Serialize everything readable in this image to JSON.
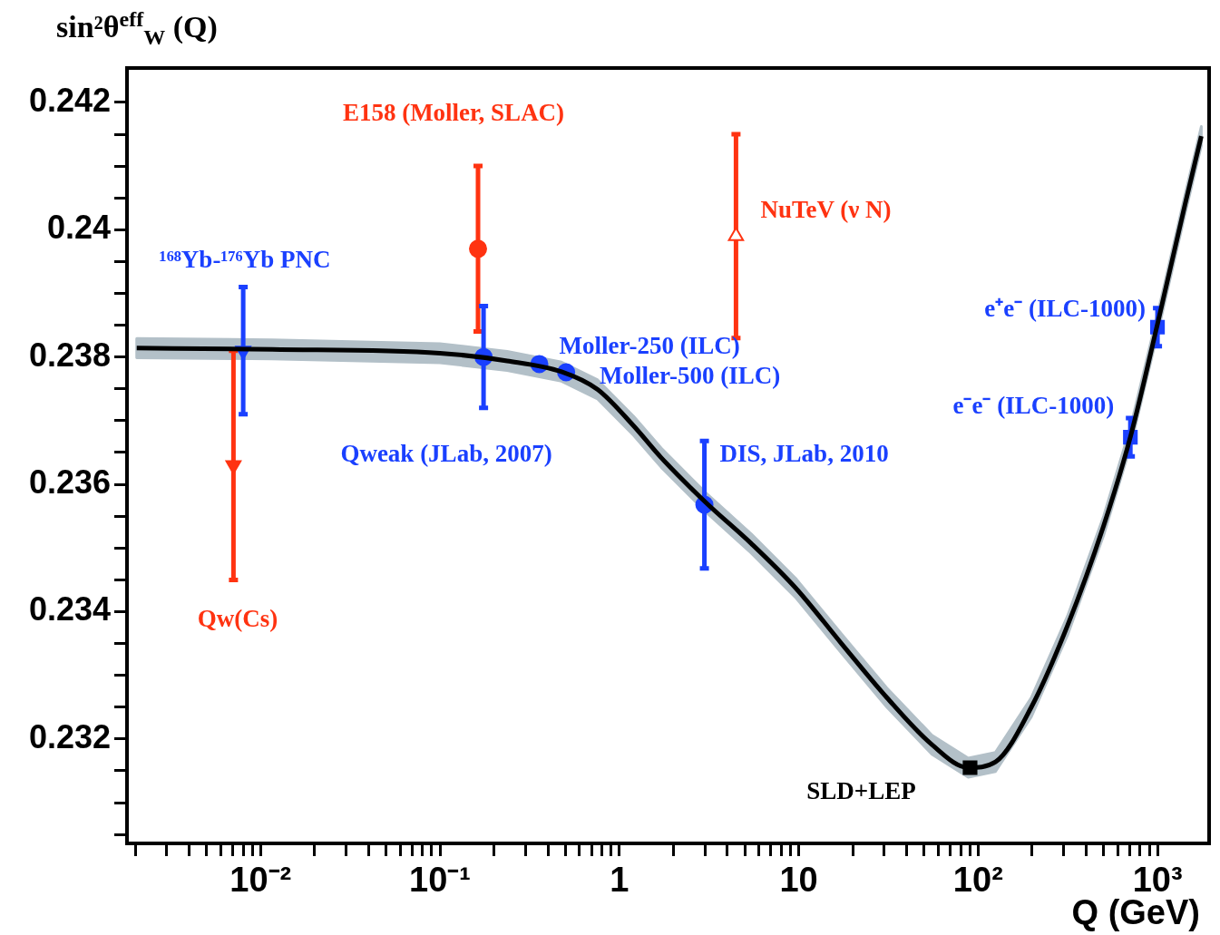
{
  "chart_data": {
    "type": "scatter",
    "xlabel": "Q (GeV)",
    "ylabel": "sin²θ$^{eff}$$_{W}$ (Q)",
    "log": "x",
    "grid": false,
    "legend": false,
    "xlim": [
      0.0018,
      1940
    ],
    "ylim": [
      0.23036,
      0.24254
    ],
    "xticks": [
      {
        "value": 0.002,
        "label": null
      },
      {
        "value": 0.003,
        "label": null
      },
      {
        "value": 0.004,
        "label": null
      },
      {
        "value": 0.005,
        "label": null
      },
      {
        "value": 0.006,
        "label": null
      },
      {
        "value": 0.007,
        "label": null
      },
      {
        "value": 0.008,
        "label": null
      },
      {
        "value": 0.009,
        "label": null
      },
      {
        "value": 0.01,
        "label": "10⁻²"
      },
      {
        "value": 0.02,
        "label": null
      },
      {
        "value": 0.03,
        "label": null
      },
      {
        "value": 0.04,
        "label": null
      },
      {
        "value": 0.05,
        "label": null
      },
      {
        "value": 0.06,
        "label": null
      },
      {
        "value": 0.07,
        "label": null
      },
      {
        "value": 0.08,
        "label": null
      },
      {
        "value": 0.09,
        "label": null
      },
      {
        "value": 0.1,
        "label": "10⁻¹"
      },
      {
        "value": 0.2,
        "label": null
      },
      {
        "value": 0.3,
        "label": null
      },
      {
        "value": 0.4,
        "label": null
      },
      {
        "value": 0.5,
        "label": null
      },
      {
        "value": 0.6,
        "label": null
      },
      {
        "value": 0.7,
        "label": null
      },
      {
        "value": 0.8,
        "label": null
      },
      {
        "value": 0.9,
        "label": null
      },
      1,
      {
        "value": 2,
        "label": null
      },
      {
        "value": 3,
        "label": null
      },
      {
        "value": 4,
        "label": null
      },
      {
        "value": 5,
        "label": null
      },
      {
        "value": 6,
        "label": null
      },
      {
        "value": 7,
        "label": null
      },
      {
        "value": 8,
        "label": null
      },
      {
        "value": 9,
        "label": null
      },
      10,
      {
        "value": 20,
        "label": null
      },
      {
        "value": 30,
        "label": null
      },
      {
        "value": 40,
        "label": null
      },
      {
        "value": 50,
        "label": null
      },
      {
        "value": 60,
        "label": null
      },
      {
        "value": 70,
        "label": null
      },
      {
        "value": 80,
        "label": null
      },
      {
        "value": 90,
        "label": null
      },
      {
        "value": 100,
        "label": "10²"
      },
      {
        "value": 200,
        "label": null
      },
      {
        "value": 300,
        "label": null
      },
      {
        "value": 400,
        "label": null
      },
      {
        "value": 500,
        "label": null
      },
      {
        "value": 600,
        "label": null
      },
      {
        "value": 700,
        "label": null
      },
      {
        "value": 800,
        "label": null
      },
      {
        "value": 900,
        "label": null
      },
      {
        "value": 1000,
        "label": "10³"
      }
    ],
    "yticks": [
      {
        "value": 0.2305,
        "label": null
      },
      {
        "value": 0.231,
        "label": null
      },
      {
        "value": 0.2315,
        "label": null
      },
      0.232,
      {
        "value": 0.2325,
        "label": null
      },
      {
        "value": 0.233,
        "label": null
      },
      {
        "value": 0.2335,
        "label": null
      },
      0.234,
      {
        "value": 0.2345,
        "label": null
      },
      {
        "value": 0.235,
        "label": null
      },
      {
        "value": 0.2355,
        "label": null
      },
      0.236,
      {
        "value": 0.2365,
        "label": null
      },
      {
        "value": 0.237,
        "label": null
      },
      {
        "value": 0.2375,
        "label": null
      },
      0.238,
      {
        "value": 0.2385,
        "label": null
      },
      {
        "value": 0.239,
        "label": null
      },
      {
        "value": 0.2395,
        "label": null
      },
      0.24,
      {
        "value": 0.2405,
        "label": null
      },
      {
        "value": 0.241,
        "label": null
      },
      {
        "value": 0.2415,
        "label": null
      },
      0.242
    ],
    "annotations": [
      "Qw(Cs)",
      "¹⁶⁸Yb-¹⁷⁶Yb PNC",
      "E158 (Moller, SLAC)",
      "Qweak (JLab, 2007)",
      {
        "text": "Moller-250 (ILC)",
        "x": 0.358,
        "y": 0.23789
      },
      {
        "text": "Moller-500 (ILC)",
        "x": 0.505,
        "y": 0.23776
      },
      {
        "text": "NuTeV (ν N)",
        "x": 4.47,
        "y": 0.2399
      },
      {
        "text": "DIS, JLab, 2010",
        "x": 2.98,
        "y": 0.23568
      },
      {
        "text": "SLD+LEP",
        "x": 90.2,
        "y": 0.23155
      },
      {
        "text": "e⁻e⁻ (ILC-1000)",
        "x": 706,
        "y": 0.23674
      },
      {
        "text": "e⁺e⁻ (ILC-1000)",
        "x": 1000,
        "y": 0.23847
      }
    ],
    "series": [
      {
        "type": "line",
        "color": "#000000",
        "marker": "none",
        "x": [
          0.00204,
          0.0116,
          0.1,
          0.237,
          0.476,
          0.757,
          1.2,
          1.71,
          3.05,
          5.44,
          9.7,
          17.3,
          31,
          55.3,
          88.1,
          125,
          198,
          315,
          501,
          710,
          1006,
          1425,
          1755
        ],
        "values": [
          0.23814,
          0.23812,
          0.23806,
          0.23794,
          0.23777,
          0.23749,
          0.23692,
          0.23642,
          0.23571,
          0.23507,
          0.23436,
          0.2335,
          0.23265,
          0.23191,
          0.23155,
          0.23164,
          0.2325,
          0.23378,
          0.23535,
          0.23677,
          0.23855,
          0.2404,
          0.24147
        ],
        "lower": [
          0.23799,
          0.23797,
          0.23791,
          0.23779,
          0.23762,
          0.23734,
          0.23677,
          0.23627,
          0.23556,
          0.23492,
          0.23421,
          0.23335,
          0.2325,
          0.23176,
          0.2314,
          0.23149,
          0.23235,
          0.23363,
          0.2352,
          0.23662,
          0.2384,
          0.24025,
          0.24132
        ],
        "upper": [
          0.23829,
          0.23827,
          0.23821,
          0.23809,
          0.23792,
          0.23764,
          0.23707,
          0.23657,
          0.23586,
          0.23522,
          0.23451,
          0.23365,
          0.2328,
          0.23206,
          0.2317,
          0.23179,
          0.23265,
          0.23393,
          0.2355,
          0.23692,
          0.2387,
          0.24055,
          0.24162
        ]
      },
      {
        "color": "#ff3311",
        "marker": "triangle",
        "x": [
          0.00706
        ],
        "values": [
          0.2363
        ],
        "errors": [
          0.0018
        ]
      },
      {
        "color": "#1a40ff",
        "marker": "triangle",
        "x": [
          0.008
        ],
        "values": [
          0.2381
        ],
        "errors": [
          0.001
        ]
      },
      {
        "color": "#ff3311",
        "marker": "circle",
        "x": [
          0.163
        ],
        "values": [
          0.2397
        ],
        "errors": [
          0.0013
        ]
      },
      {
        "color": "#1a40ff",
        "marker": "circle",
        "x": [
          0.175
        ],
        "values": [
          0.238
        ],
        "errors": [
          0.0008
        ]
      },
      {
        "color": "#1a40ff",
        "marker": "circle",
        "x": [
          0.358
        ],
        "values": [
          0.23789
        ]
      },
      {
        "color": "#1a40ff",
        "marker": "circle",
        "x": [
          0.505
        ],
        "values": [
          0.23776
        ]
      },
      {
        "color": "#ff3311",
        "marker": "triangle",
        "x": [
          4.47
        ],
        "values": [
          0.2399
        ],
        "errors": [
          0.0016
        ]
      },
      {
        "color": "#1a40ff",
        "marker": "circle",
        "x": [
          2.98
        ],
        "values": [
          0.23568
        ],
        "errors": [
          0.001
        ]
      },
      {
        "color": "#000000",
        "marker": "square",
        "x": [
          90.2
        ],
        "values": [
          0.23155
        ]
      },
      {
        "color": "#1a40ff",
        "marker": "square",
        "x": [
          706
        ],
        "values": [
          0.23674
        ],
        "errors": [
          0.0003
        ]
      },
      {
        "color": "#1a40ff",
        "marker": "square",
        "x": [
          1000
        ],
        "values": [
          0.23847
        ],
        "errors": [
          0.0003
        ]
      }
    ]
  }
}
